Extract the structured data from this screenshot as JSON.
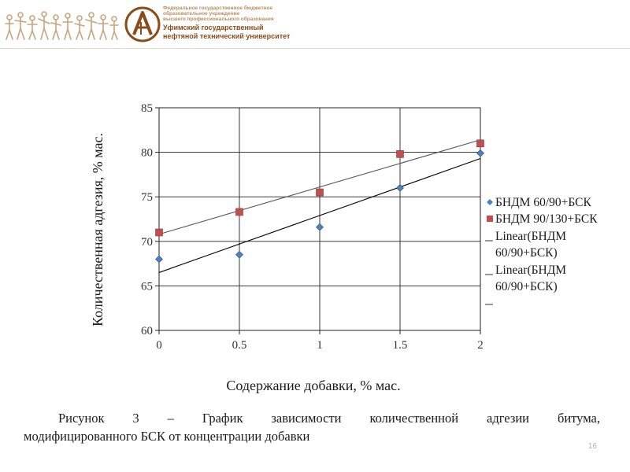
{
  "header": {
    "org_lines": [
      "Федеральное государственное бюджетное",
      "образовательное учреждение",
      "высшего профессионального образования"
    ],
    "university_lines": [
      "Уфимский государственный",
      "нефтяной технический университет"
    ],
    "accent_color": "#8b4c1a",
    "light_color": "#b98f63"
  },
  "chart_data": {
    "type": "scatter",
    "xlabel": "Содержание добавки, % мас.",
    "ylabel": "Количественная адгезия, % мас.",
    "xlim": [
      0,
      2
    ],
    "ylim": [
      60,
      85
    ],
    "xticks": [
      0,
      0.5,
      1,
      1.5,
      2
    ],
    "xtick_labels": [
      "0",
      "0.5",
      "1",
      "1.5",
      "2"
    ],
    "yticks": [
      60,
      65,
      70,
      75,
      80,
      85
    ],
    "ytick_labels": [
      "60",
      "65",
      "70",
      "75",
      "80",
      "85"
    ],
    "grid": true,
    "legend_position": "right",
    "series": [
      {
        "name": "БНДМ 60/90+БСК",
        "marker": "diamond",
        "color": "#4f81bd",
        "x": [
          0,
          0.5,
          1,
          1.5,
          2
        ],
        "y": [
          68,
          68.5,
          71.6,
          76,
          79.9
        ]
      },
      {
        "name": "БНДМ 90/130+БСК",
        "marker": "square",
        "color": "#c0504d",
        "x": [
          0,
          0.5,
          1,
          1.5,
          2
        ],
        "y": [
          71,
          73.3,
          75.5,
          79.8,
          81
        ]
      }
    ],
    "trendlines": [
      {
        "label_lines": [
          "Linear(БНДМ",
          "60/90+БСК)"
        ],
        "y_start": 66.5,
        "y_end": 79.3,
        "color": "#000000"
      },
      {
        "label_lines": [
          "Linear(БНДМ",
          "60/90+БСК)"
        ],
        "y_start": 70.8,
        "y_end": 81.4,
        "color": "#555555"
      }
    ]
  },
  "caption": {
    "line1": "Рисунок 3 – График зависимости количественной адгезии битума,",
    "line2": "модифицированного БСК от концентрации добавки"
  },
  "page_number": "16"
}
